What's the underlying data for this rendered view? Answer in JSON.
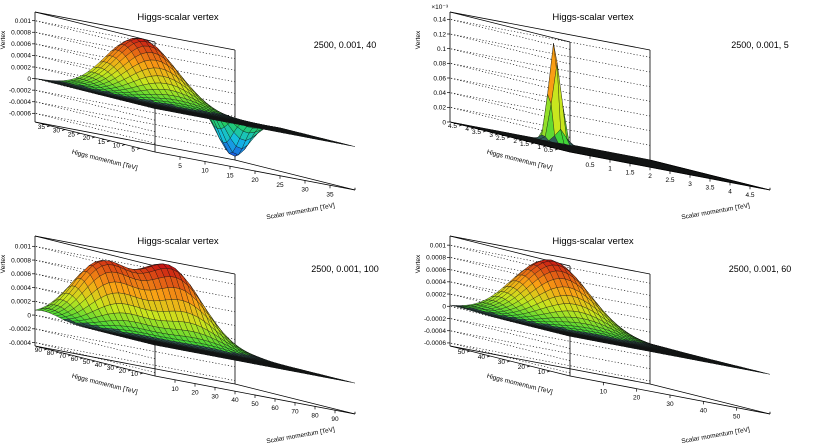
{
  "chart_data": [
    {
      "type": "surface",
      "title": "Higgs-scalar vertex",
      "params_label": "2500, 0.001, 40",
      "xlabel": "Scalar momentum [TeV]",
      "ylabel": "Higgs momentum [TeV]",
      "zlabel": "Vertex",
      "x_ticks": [
        "5",
        "10",
        "15",
        "20",
        "25",
        "30",
        "35"
      ],
      "y_ticks": [
        "5",
        "10",
        "15",
        "20",
        "25",
        "30",
        "35"
      ],
      "z_ticks": [
        "-0.0006",
        "-0.0004",
        "-0.0002",
        "0",
        "0.0002",
        "0.0004",
        "0.0006",
        "0.0008",
        "0.001"
      ],
      "xlim": [
        0,
        40
      ],
      "ylim": [
        0,
        40
      ],
      "zlim": [
        -0.00075,
        0.00115
      ],
      "z_exponent": "",
      "peaks": [
        {
          "x": 20,
          "y": 38,
          "z": 0.00105,
          "sx": 6,
          "sy": 6
        },
        {
          "x": 36,
          "y": 34,
          "z": -0.0007,
          "sx": 2.5,
          "sy": 3
        }
      ]
    },
    {
      "type": "surface",
      "title": "Higgs-scalar vertex",
      "params_label": "2500, 0.001, 5",
      "xlabel": "Scalar momentum [TeV]",
      "ylabel": "Higgs momentum [TeV]",
      "zlabel": "Vertex",
      "x_ticks": [
        "0.5",
        "1",
        "1.5",
        "2",
        "2.5",
        "3",
        "3.5",
        "4",
        "4.5"
      ],
      "y_ticks": [
        "0.5",
        "1",
        "1.5",
        "2",
        "2.5",
        "3",
        "3.5",
        "4",
        "4.5"
      ],
      "z_ticks": [
        "0",
        "0.02",
        "0.04",
        "0.06",
        "0.08",
        "0.1",
        "0.12",
        "0.14"
      ],
      "xlim": [
        0,
        5
      ],
      "ylim": [
        0,
        5
      ],
      "zlim": [
        0,
        0.15
      ],
      "z_exponent": "×10⁻³",
      "peaks": [
        {
          "x": 2.5,
          "y": 4.8,
          "z": 0.148,
          "sx": 0.12,
          "sy": 0.12
        }
      ]
    },
    {
      "type": "surface",
      "title": "Higgs-scalar vertex",
      "params_label": "2500, 0.001, 100",
      "xlabel": "Scalar momentum [TeV]",
      "ylabel": "Higgs momentum [TeV]",
      "zlabel": "Vertex",
      "x_ticks": [
        "10",
        "20",
        "30",
        "40",
        "50",
        "60",
        "70",
        "80",
        "90"
      ],
      "y_ticks": [
        "10",
        "20",
        "30",
        "40",
        "50",
        "60",
        "70",
        "80",
        "90"
      ],
      "z_ticks": [
        "-0.0004",
        "-0.0002",
        "0",
        "0.0002",
        "0.0004",
        "0.0006",
        "0.0008",
        "0.001"
      ],
      "xlim": [
        0,
        100
      ],
      "ylim": [
        0,
        100
      ],
      "zlim": [
        -0.00045,
        0.00115
      ],
      "z_exponent": "",
      "peaks": [
        {
          "x": 28,
          "y": 92,
          "z": 0.0009,
          "sx": 13,
          "sy": 12
        },
        {
          "x": 62,
          "y": 92,
          "z": 0.00108,
          "sx": 15,
          "sy": 12
        }
      ]
    },
    {
      "type": "surface",
      "title": "Higgs-scalar vertex",
      "params_label": "2500, 0.001, 60",
      "xlabel": "Scalar momentum [TeV]",
      "ylabel": "Higgs momentum [TeV]",
      "zlabel": "Vertex",
      "x_ticks": [
        "10",
        "20",
        "30",
        "40",
        "50"
      ],
      "y_ticks": [
        "10",
        "20",
        "30",
        "40",
        "50"
      ],
      "z_ticks": [
        "-0.0006",
        "-0.0004",
        "-0.0002",
        "0",
        "0.0002",
        "0.0004",
        "0.0006",
        "0.0008",
        "0.001"
      ],
      "xlim": [
        0,
        60
      ],
      "ylim": [
        0,
        60
      ],
      "zlim": [
        -0.00065,
        0.00115
      ],
      "z_exponent": "",
      "peaks": [
        {
          "x": 28,
          "y": 56,
          "z": 0.00108,
          "sx": 10,
          "sy": 9
        }
      ]
    }
  ]
}
